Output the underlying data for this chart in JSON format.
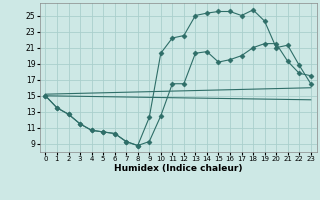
{
  "xlabel": "Humidex (Indice chaleur)",
  "background_color": "#cde8e5",
  "grid_color": "#aacfcc",
  "line_color": "#2e6e68",
  "xlim": [
    -0.5,
    23.5
  ],
  "ylim": [
    8.0,
    26.5
  ],
  "xticks": [
    0,
    1,
    2,
    3,
    4,
    5,
    6,
    7,
    8,
    9,
    10,
    11,
    12,
    13,
    14,
    15,
    16,
    17,
    18,
    19,
    20,
    21,
    22,
    23
  ],
  "yticks": [
    9,
    11,
    13,
    15,
    17,
    19,
    21,
    23,
    25
  ],
  "line1_x": [
    0,
    1,
    2,
    3,
    4,
    5,
    6,
    7,
    8,
    9,
    10,
    11,
    12,
    13,
    14,
    15,
    16,
    17,
    18,
    19,
    20,
    21,
    22,
    23
  ],
  "line1_y": [
    15.0,
    13.5,
    12.7,
    11.5,
    10.7,
    10.5,
    10.3,
    9.3,
    8.8,
    12.3,
    20.3,
    22.2,
    22.5,
    25.0,
    25.3,
    25.5,
    25.5,
    25.0,
    25.7,
    24.3,
    21.0,
    21.3,
    18.8,
    16.5
  ],
  "line2_x": [
    0,
    1,
    2,
    3,
    4,
    5,
    6,
    7,
    8,
    9,
    10,
    11,
    12,
    13,
    14,
    15,
    16,
    17,
    18,
    19,
    20,
    21,
    22,
    23
  ],
  "line2_y": [
    15.0,
    13.5,
    12.7,
    11.5,
    10.7,
    10.5,
    10.3,
    9.3,
    8.8,
    9.3,
    12.5,
    16.5,
    16.5,
    20.3,
    20.5,
    19.2,
    19.5,
    20.0,
    21.0,
    21.5,
    21.5,
    19.3,
    17.8,
    17.5
  ],
  "line3_x": [
    0,
    23
  ],
  "line3_y": [
    15.2,
    16.0
  ],
  "line4_x": [
    0,
    23
  ],
  "line4_y": [
    15.0,
    14.5
  ]
}
